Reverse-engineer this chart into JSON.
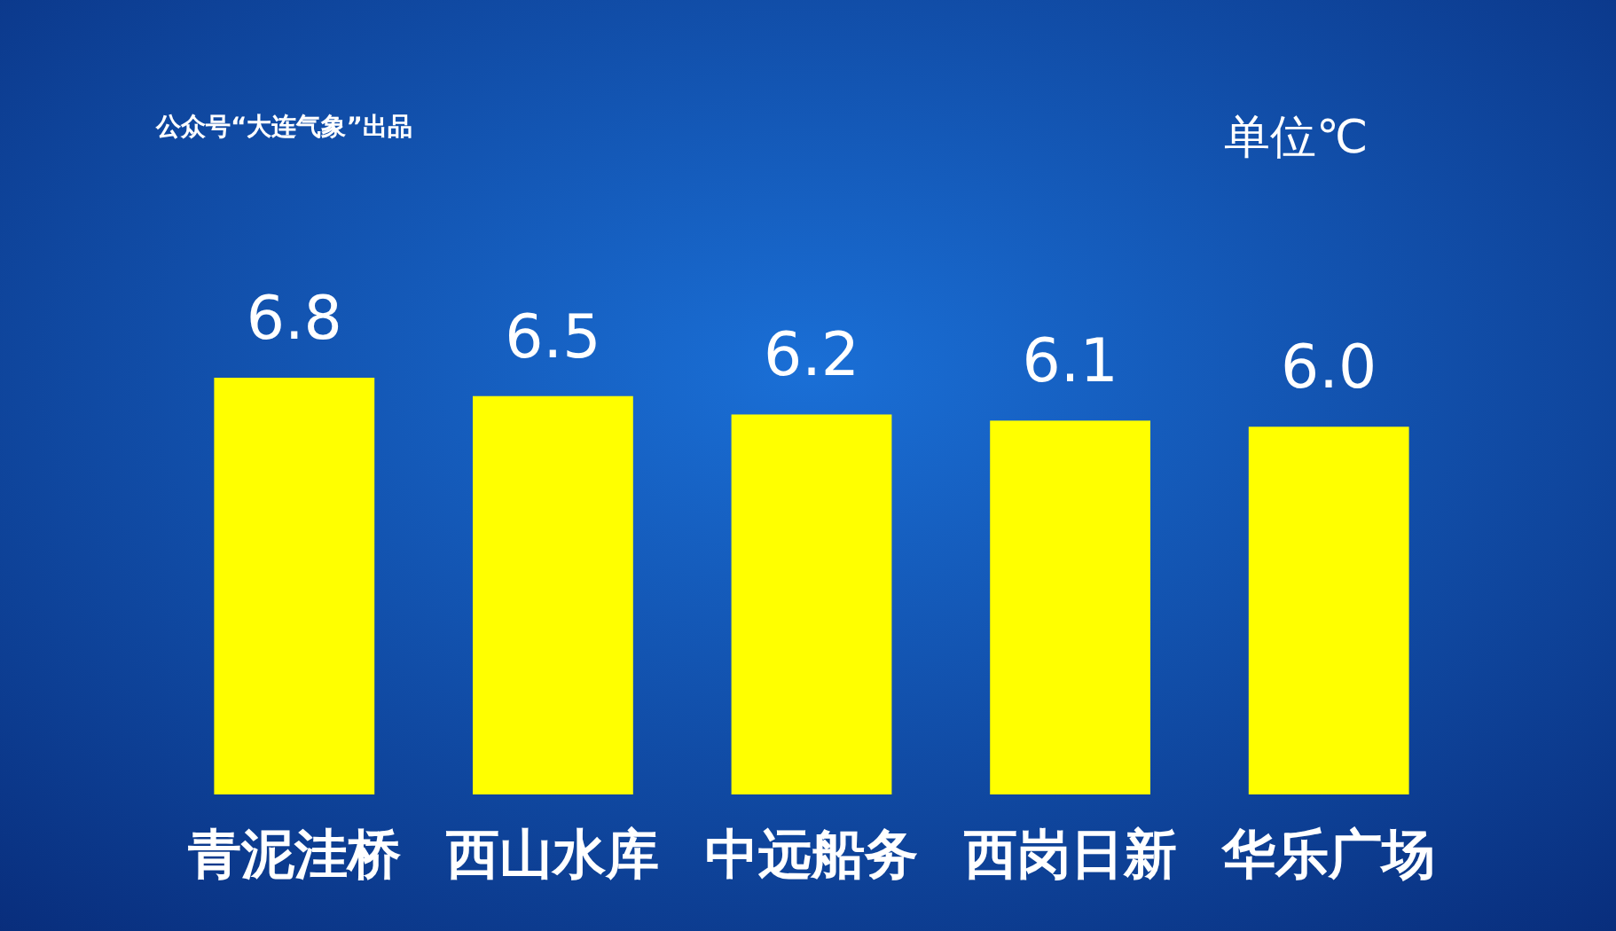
{
  "chart_data": {
    "type": "bar",
    "title": "公众号“大连气象”出品",
    "annotations": [
      "单位℃"
    ],
    "categories": [
      "青泥洼桥",
      "西山水库",
      "中远船务",
      "西岗日新",
      "华乐广场"
    ],
    "values": [
      6.8,
      6.5,
      6.2,
      6.1,
      6.0
    ],
    "value_labels": [
      "6.8",
      "6.5",
      "6.2",
      "6.1",
      "6.0"
    ],
    "color": "#ffff00"
  }
}
